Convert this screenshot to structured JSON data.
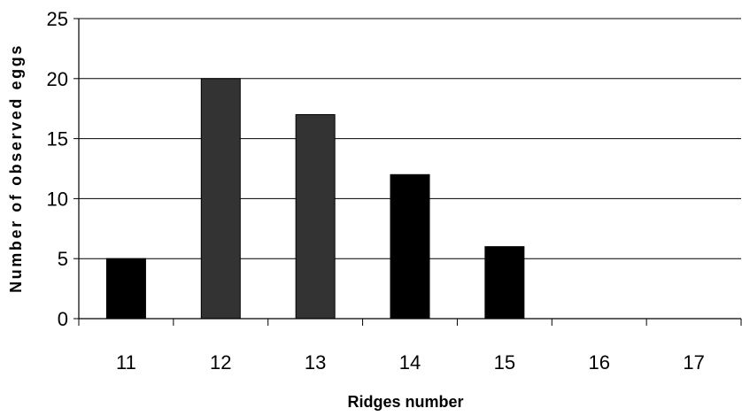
{
  "chart_data": {
    "type": "bar",
    "title": "",
    "xlabel": "Ridges number",
    "ylabel": "Number of observed eggs",
    "categories": [
      "11",
      "12",
      "13",
      "14",
      "15",
      "16",
      "17"
    ],
    "values": [
      5,
      20,
      17,
      12,
      6,
      0,
      0
    ],
    "bar_colors": [
      "#000000",
      "#333333",
      "#333333",
      "#000000",
      "#000000",
      "#000000",
      "#000000"
    ],
    "ylim": [
      0,
      25
    ],
    "yticks": [
      "0",
      "5",
      "10",
      "15",
      "20",
      "25"
    ],
    "grid": true,
    "legend": "none"
  }
}
